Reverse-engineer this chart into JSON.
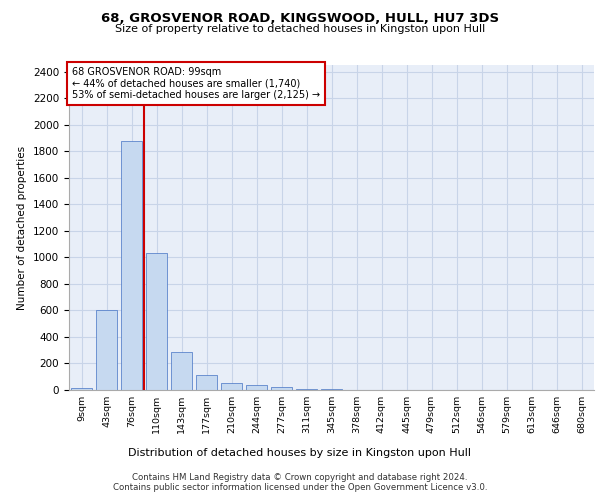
{
  "title1": "68, GROSVENOR ROAD, KINGSWOOD, HULL, HU7 3DS",
  "title2": "Size of property relative to detached houses in Kingston upon Hull",
  "xlabel": "Distribution of detached houses by size in Kingston upon Hull",
  "ylabel": "Number of detached properties",
  "footer1": "Contains HM Land Registry data © Crown copyright and database right 2024.",
  "footer2": "Contains public sector information licensed under the Open Government Licence v3.0.",
  "annotation_line1": "68 GROSVENOR ROAD: 99sqm",
  "annotation_line2": "← 44% of detached houses are smaller (1,740)",
  "annotation_line3": "53% of semi-detached houses are larger (2,125) →",
  "bar_labels": [
    "9sqm",
    "43sqm",
    "76sqm",
    "110sqm",
    "143sqm",
    "177sqm",
    "210sqm",
    "244sqm",
    "277sqm",
    "311sqm",
    "345sqm",
    "378sqm",
    "412sqm",
    "445sqm",
    "479sqm",
    "512sqm",
    "546sqm",
    "579sqm",
    "613sqm",
    "646sqm",
    "680sqm"
  ],
  "bar_values": [
    15,
    600,
    1880,
    1030,
    285,
    115,
    50,
    35,
    25,
    10,
    5,
    3,
    2,
    1,
    1,
    0,
    0,
    0,
    0,
    0,
    0
  ],
  "bar_color": "#c6d9f0",
  "bar_edge_color": "#4472c4",
  "vline_color": "#cc0000",
  "vline_x": 2.5,
  "ylim": [
    0,
    2450
  ],
  "yticks": [
    0,
    200,
    400,
    600,
    800,
    1000,
    1200,
    1400,
    1600,
    1800,
    2000,
    2200,
    2400
  ],
  "grid_color": "#c8d4e8",
  "background_color": "#e8eef8"
}
